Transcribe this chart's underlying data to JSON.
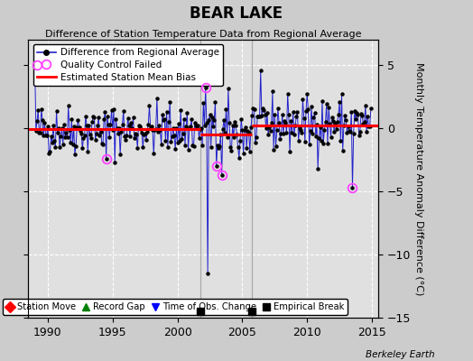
{
  "title": "BEAR LAKE",
  "subtitle": "Difference of Station Temperature Data from Regional Average",
  "ylabel": "Monthly Temperature Anomaly Difference (°C)",
  "xlim": [
    1988.5,
    2015.5
  ],
  "ylim": [
    -15,
    7
  ],
  "yticks": [
    -15,
    -10,
    -5,
    0,
    5
  ],
  "xticks": [
    1990,
    1995,
    2000,
    2005,
    2010,
    2015
  ],
  "bg_color": "#cccccc",
  "plot_bg_color": "#e0e0e0",
  "grid_color": "#ffffff",
  "grid_style": "--",
  "line_color": "#2222cc",
  "bias_color": "red",
  "marker_color": "black",
  "qc_color": "#ff44ff",
  "watermark": "Berkeley Earth",
  "empirical_breaks": [
    2001.75,
    2005.75
  ],
  "vline_color": "#aaaaaa",
  "bias_segments": [
    {
      "x": [
        1988.5,
        2001.75
      ],
      "y": [
        -0.1,
        -0.1
      ]
    },
    {
      "x": [
        2001.75,
        2005.75
      ],
      "y": [
        -0.5,
        -0.5
      ]
    },
    {
      "x": [
        2005.75,
        2015.5
      ],
      "y": [
        0.25,
        0.25
      ]
    }
  ],
  "qc_failed_points": [
    [
      1989.17,
      5.0
    ],
    [
      1994.5,
      -2.4
    ],
    [
      2002.17,
      3.2
    ],
    [
      2003.0,
      -3.0
    ],
    [
      2003.42,
      -3.7
    ],
    [
      2013.5,
      -4.7
    ]
  ],
  "seed": 42,
  "figsize": [
    5.24,
    4.0
  ],
  "dpi": 100
}
